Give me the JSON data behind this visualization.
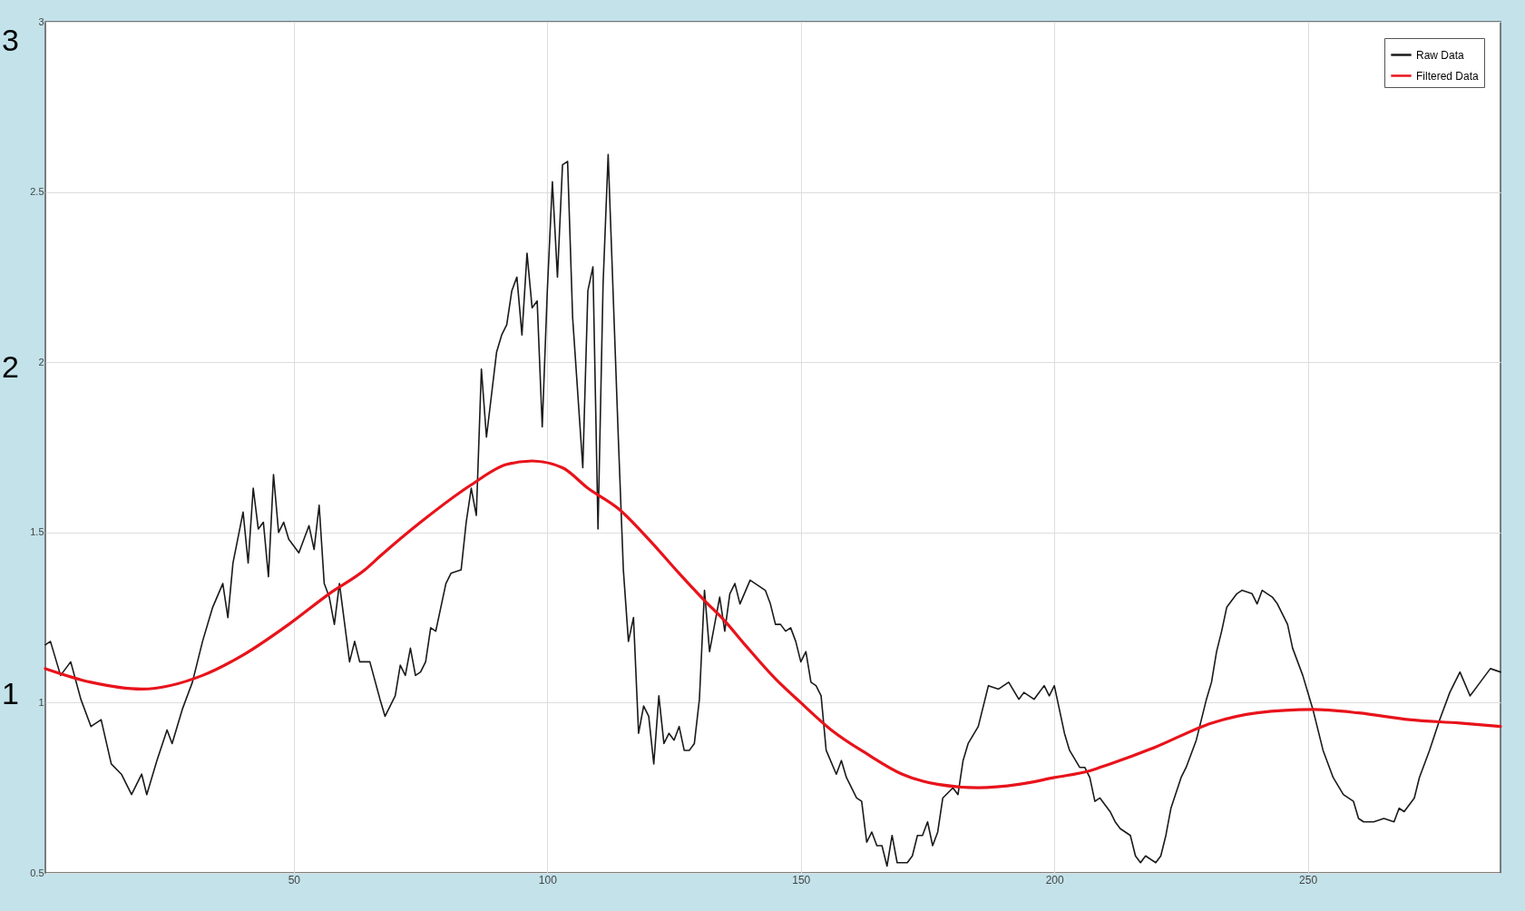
{
  "chart_data": {
    "type": "line",
    "xlim": [
      1,
      288
    ],
    "xticks": [
      50,
      100,
      150,
      200,
      250
    ],
    "ylim": [
      0.5,
      3
    ],
    "yticks": [
      0.5,
      1,
      1.5,
      2,
      2.5,
      3
    ],
    "grid": true,
    "legend": "top right",
    "annotations": [
      "3",
      "2",
      "1"
    ],
    "series": [
      {
        "name": "Raw Data",
        "color": "#1a1a1a",
        "x": [
          1,
          2,
          4,
          6,
          8,
          10,
          12,
          14,
          16,
          18,
          20,
          21,
          23,
          25,
          26,
          28,
          30,
          32,
          34,
          36,
          37,
          38,
          40,
          41,
          42,
          43,
          44,
          45,
          46,
          47,
          48,
          49,
          51,
          53,
          54,
          55,
          56,
          57,
          58,
          59,
          61,
          62,
          63,
          65,
          67,
          68,
          70,
          71,
          72,
          73,
          74,
          75,
          76,
          77,
          78,
          80,
          81,
          83,
          84,
          85,
          86,
          87,
          88,
          90,
          91,
          92,
          93,
          94,
          95,
          96,
          97,
          98,
          99,
          100,
          101,
          102,
          103,
          104,
          105,
          107,
          108,
          109,
          110,
          111,
          112,
          114,
          115,
          116,
          117,
          118,
          119,
          120,
          121,
          122,
          123,
          124,
          125,
          126,
          127,
          128,
          129,
          130,
          131,
          132,
          133,
          134,
          135,
          136,
          137,
          138,
          140,
          141,
          143,
          144,
          145,
          146,
          147,
          148,
          149,
          150,
          151,
          152,
          153,
          154,
          155,
          157,
          158,
          159,
          161,
          162,
          163,
          164,
          165,
          166,
          167,
          168,
          169,
          171,
          172,
          173,
          174,
          175,
          176,
          177,
          178,
          180,
          181,
          182,
          183,
          185,
          187,
          189,
          191,
          193,
          194,
          196,
          198,
          199,
          200,
          202,
          203,
          205,
          206,
          207,
          208,
          209,
          211,
          212,
          213,
          215,
          216,
          217,
          218,
          220,
          221,
          222,
          223,
          225,
          226,
          228,
          229,
          230,
          231,
          232,
          233,
          234,
          236,
          237,
          239,
          240,
          241,
          243,
          244,
          246,
          247,
          249,
          251,
          253,
          255,
          257,
          259,
          260,
          261,
          263,
          265,
          267,
          268,
          269,
          271,
          272,
          274,
          276,
          278,
          280,
          282,
          284,
          286,
          288
        ],
        "values": [
          1.17,
          1.18,
          1.08,
          1.12,
          1.01,
          0.93,
          0.95,
          0.82,
          0.79,
          0.73,
          0.79,
          0.73,
          0.83,
          0.92,
          0.88,
          0.98,
          1.06,
          1.18,
          1.28,
          1.35,
          1.25,
          1.41,
          1.56,
          1.41,
          1.63,
          1.51,
          1.53,
          1.37,
          1.67,
          1.5,
          1.53,
          1.48,
          1.44,
          1.52,
          1.45,
          1.58,
          1.35,
          1.31,
          1.23,
          1.35,
          1.12,
          1.18,
          1.12,
          1.12,
          1.01,
          0.96,
          1.02,
          1.11,
          1.08,
          1.16,
          1.08,
          1.09,
          1.12,
          1.22,
          1.21,
          1.35,
          1.38,
          1.39,
          1.53,
          1.63,
          1.55,
          1.98,
          1.78,
          2.03,
          2.08,
          2.11,
          2.21,
          2.25,
          2.08,
          2.32,
          2.16,
          2.18,
          1.81,
          2.21,
          2.53,
          2.25,
          2.58,
          2.59,
          2.13,
          1.69,
          2.21,
          2.28,
          1.51,
          2.23,
          2.61,
          1.78,
          1.39,
          1.18,
          1.25,
          0.91,
          0.99,
          0.96,
          0.82,
          1.02,
          0.88,
          0.91,
          0.89,
          0.93,
          0.86,
          0.86,
          0.88,
          1.01,
          1.33,
          1.15,
          1.23,
          1.31,
          1.21,
          1.32,
          1.35,
          1.29,
          1.36,
          1.35,
          1.33,
          1.29,
          1.23,
          1.23,
          1.21,
          1.22,
          1.18,
          1.12,
          1.15,
          1.06,
          1.05,
          1.02,
          0.86,
          0.79,
          0.83,
          0.78,
          0.72,
          0.71,
          0.59,
          0.62,
          0.58,
          0.58,
          0.52,
          0.61,
          0.53,
          0.53,
          0.55,
          0.61,
          0.61,
          0.65,
          0.58,
          0.62,
          0.72,
          0.75,
          0.73,
          0.83,
          0.88,
          0.93,
          1.05,
          1.04,
          1.06,
          1.01,
          1.03,
          1.01,
          1.05,
          1.02,
          1.05,
          0.91,
          0.86,
          0.81,
          0.81,
          0.78,
          0.71,
          0.72,
          0.68,
          0.65,
          0.63,
          0.61,
          0.55,
          0.53,
          0.55,
          0.53,
          0.55,
          0.61,
          0.69,
          0.78,
          0.81,
          0.89,
          0.95,
          1.01,
          1.06,
          1.15,
          1.21,
          1.28,
          1.32,
          1.33,
          1.32,
          1.29,
          1.33,
          1.31,
          1.29,
          1.23,
          1.16,
          1.08,
          0.98,
          0.86,
          0.78,
          0.73,
          0.71,
          0.66,
          0.65,
          0.65,
          0.66,
          0.65,
          0.69,
          0.68,
          0.72,
          0.78,
          0.86,
          0.95,
          1.03,
          1.09,
          1.02,
          1.06,
          1.1,
          1.09
        ]
      },
      {
        "name": "Filtered Data",
        "color": "#e8131b",
        "x": [
          1,
          10,
          20,
          32,
          40,
          49,
          57,
          64,
          67,
          75,
          85,
          92,
          97,
          103,
          108,
          114,
          120,
          126,
          131,
          135,
          139,
          145,
          150,
          156,
          163,
          170,
          177,
          185,
          193,
          200,
          207,
          211,
          220,
          231,
          240,
          251,
          260,
          270,
          280,
          288
        ],
        "values": [
          1.1,
          1.06,
          1.04,
          1.08,
          1.14,
          1.23,
          1.32,
          1.39,
          1.43,
          1.53,
          1.64,
          1.7,
          1.71,
          1.69,
          1.63,
          1.57,
          1.48,
          1.38,
          1.3,
          1.24,
          1.17,
          1.07,
          1.0,
          0.92,
          0.85,
          0.79,
          0.76,
          0.75,
          0.76,
          0.78,
          0.8,
          0.82,
          0.87,
          0.94,
          0.97,
          0.98,
          0.97,
          0.95,
          0.94,
          0.93
        ]
      }
    ]
  }
}
